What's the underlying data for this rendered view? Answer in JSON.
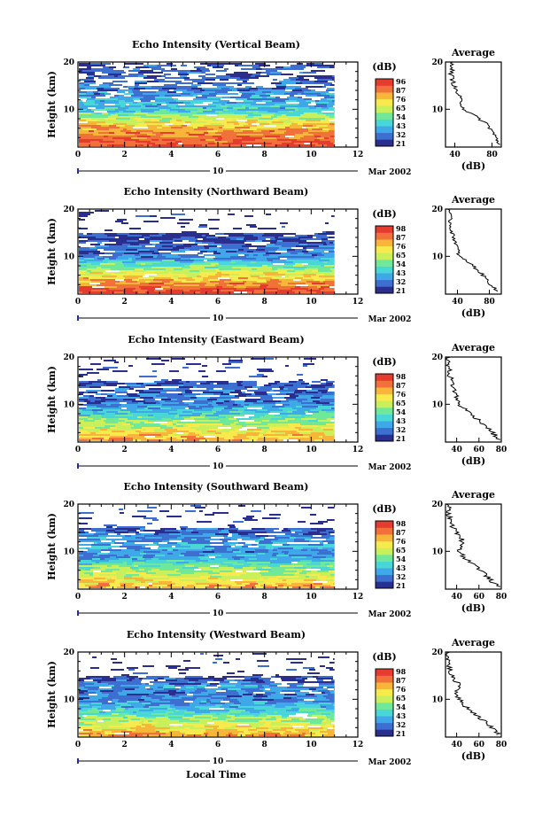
{
  "figure": {
    "xlabel": "Local Time",
    "date_label": "Mar 2002",
    "day_label": "10",
    "colorbar_unit": "(dB)",
    "colorbar_colors": [
      "#2a2e8e",
      "#3d6fd0",
      "#3fa8e8",
      "#49d6d6",
      "#6fe89a",
      "#c9ef5a",
      "#f6ea4c",
      "#f7b53a",
      "#f2713a",
      "#e53c2f"
    ]
  },
  "chart_data": [
    {
      "type": "heatmap",
      "title": "Echo Intensity (Vertical Beam)",
      "xlabel": "",
      "ylabel": "Height (km)",
      "xlim": [
        0,
        12
      ],
      "ylim": [
        2,
        20
      ],
      "data_xlim": [
        0,
        11
      ],
      "x_ticks": [
        "0",
        "2",
        "4",
        "6",
        "8",
        "10",
        "12"
      ],
      "y_ticks": [
        "10",
        "20"
      ],
      "colorbar_ticks": [
        "96",
        "87",
        "76",
        "65",
        "54",
        "43",
        "32",
        "21"
      ],
      "profile": {
        "title": "Average",
        "xlabel": "(dB)",
        "x_ticks": [
          "40",
          "80"
        ],
        "xlim": [
          30,
          90
        ],
        "heights": [
          2.5,
          4,
          5.5,
          7,
          8.5,
          10,
          11.5,
          13,
          14.5,
          16,
          17.5,
          19,
          20
        ],
        "values": [
          88,
          84,
          80,
          74,
          62,
          50,
          47,
          44,
          40,
          38,
          36,
          38,
          36
        ]
      }
    },
    {
      "type": "heatmap",
      "title": "Echo Intensity (Northward Beam)",
      "xlabel": "",
      "ylabel": "Height (km)",
      "xlim": [
        0,
        12
      ],
      "ylim": [
        2,
        20
      ],
      "data_xlim": [
        0,
        11
      ],
      "x_ticks": [
        "0",
        "2",
        "4",
        "6",
        "8",
        "10",
        "12"
      ],
      "y_ticks": [
        "10",
        "20"
      ],
      "colorbar_ticks": [
        "98",
        "87",
        "76",
        "65",
        "54",
        "43",
        "32",
        "21"
      ],
      "profile": {
        "title": "Average",
        "xlabel": "(dB)",
        "x_ticks": [
          "40",
          "80"
        ],
        "xlim": [
          25,
          95
        ],
        "heights": [
          2.5,
          4,
          5.5,
          7,
          8.5,
          10,
          11.5,
          13,
          14.5,
          16,
          17.5,
          19,
          20
        ],
        "values": [
          90,
          82,
          75,
          66,
          56,
          42,
          40,
          38,
          34,
          32,
          31,
          30,
          30
        ]
      }
    },
    {
      "type": "heatmap",
      "title": "Echo Intensity (Eastward Beam)",
      "xlabel": "",
      "ylabel": "Height (km)",
      "xlim": [
        0,
        12
      ],
      "ylim": [
        2,
        20
      ],
      "data_xlim": [
        0,
        11
      ],
      "x_ticks": [
        "0",
        "2",
        "4",
        "6",
        "8",
        "10",
        "12"
      ],
      "y_ticks": [
        "10",
        "20"
      ],
      "colorbar_ticks": [
        "98",
        "87",
        "76",
        "65",
        "54",
        "43",
        "32",
        "21"
      ],
      "profile": {
        "title": "Average",
        "xlabel": "(dB)",
        "x_ticks": [
          "40",
          "60",
          "80"
        ],
        "xlim": [
          30,
          80
        ],
        "heights": [
          2.5,
          4,
          5.5,
          7,
          8.5,
          10,
          11.5,
          13,
          14.5,
          16,
          17.5,
          19,
          20
        ],
        "values": [
          78,
          72,
          66,
          58,
          50,
          42,
          40,
          38,
          36,
          34,
          33,
          32,
          32
        ]
      }
    },
    {
      "type": "heatmap",
      "title": "Echo Intensity (Southward Beam)",
      "xlabel": "",
      "ylabel": "Height (km)",
      "xlim": [
        0,
        12
      ],
      "ylim": [
        2,
        20
      ],
      "data_xlim": [
        0,
        11
      ],
      "x_ticks": [
        "0",
        "2",
        "4",
        "6",
        "8",
        "10",
        "12"
      ],
      "y_ticks": [
        "10",
        "20"
      ],
      "colorbar_ticks": [
        "98",
        "87",
        "76",
        "65",
        "54",
        "43",
        "32",
        "21"
      ],
      "profile": {
        "title": "Average",
        "xlabel": "(dB)",
        "x_ticks": [
          "40",
          "60",
          "80"
        ],
        "xlim": [
          30,
          80
        ],
        "heights": [
          2.5,
          4,
          5.5,
          7,
          8.5,
          10,
          11.5,
          13,
          14.5,
          16,
          17.5,
          19,
          20
        ],
        "values": [
          77,
          70,
          64,
          57,
          48,
          42,
          46,
          44,
          38,
          35,
          33,
          33,
          32
        ]
      }
    },
    {
      "type": "heatmap",
      "title": "Echo Intensity (Westward Beam)",
      "xlabel": "",
      "ylabel": "Height (km)",
      "xlim": [
        0,
        12
      ],
      "ylim": [
        2,
        20
      ],
      "data_xlim": [
        0,
        11
      ],
      "x_ticks": [
        "0",
        "2",
        "4",
        "6",
        "8",
        "10",
        "12"
      ],
      "y_ticks": [
        "10",
        "20"
      ],
      "colorbar_ticks": [
        "98",
        "87",
        "76",
        "65",
        "54",
        "43",
        "32",
        "21"
      ],
      "profile": {
        "title": "Average",
        "xlabel": "(dB)",
        "x_ticks": [
          "40",
          "60",
          "80"
        ],
        "xlim": [
          30,
          80
        ],
        "heights": [
          2.5,
          4,
          5.5,
          7,
          8.5,
          10,
          11.5,
          13,
          14.5,
          16,
          17.5,
          19,
          20
        ],
        "values": [
          78,
          72,
          64,
          56,
          48,
          42,
          40,
          44,
          36,
          34,
          33,
          32,
          32
        ]
      }
    }
  ]
}
